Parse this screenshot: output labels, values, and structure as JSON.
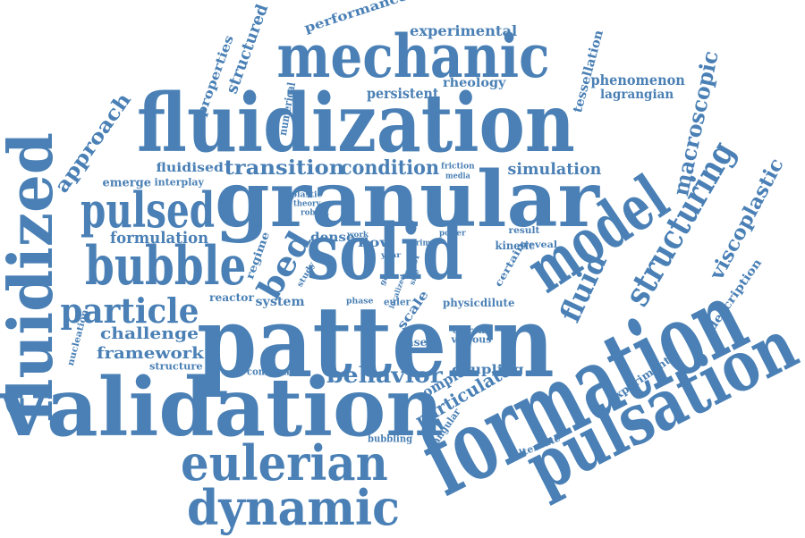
{
  "colors": {
    "word": "#4a80b5",
    "background": "#ffffff"
  },
  "words": [
    "fluidization",
    "granular",
    "solid",
    "pattern",
    "validation",
    "formation",
    "pulsation",
    "mechanic",
    "model",
    "fluidized",
    "bubble",
    "pulsed",
    "eulerian",
    "dynamic",
    "structuring",
    "particle",
    "fluid",
    "macroscopic",
    "viscoplastic",
    "bed",
    "transition",
    "condition",
    "simulation",
    "behavior",
    "formulation",
    "approach",
    "framework",
    "challenge",
    "particulate",
    "complex",
    "experimental",
    "persistent",
    "phenomenon",
    "structured",
    "lagrangian",
    "tessellation",
    "rheology",
    "performance",
    "properties",
    "fluidised",
    "interplay",
    "emerge",
    "numerical",
    "dense",
    "flow",
    "system",
    "reactor",
    "regime",
    "kinetic",
    "certain",
    "scale",
    "physic",
    "dilute",
    "based",
    "viscous",
    "coupling",
    "description",
    "experiment",
    "alternate",
    "common",
    "structure",
    "nucleation",
    "bubbling",
    "triangular",
    "current",
    "friction",
    "media",
    "plastic",
    "theory",
    "robust",
    "study",
    "work",
    "year",
    "good",
    "tool",
    "prime",
    "role",
    "localized",
    "size",
    "power",
    "result",
    "reveal",
    "phase",
    "euler"
  ]
}
